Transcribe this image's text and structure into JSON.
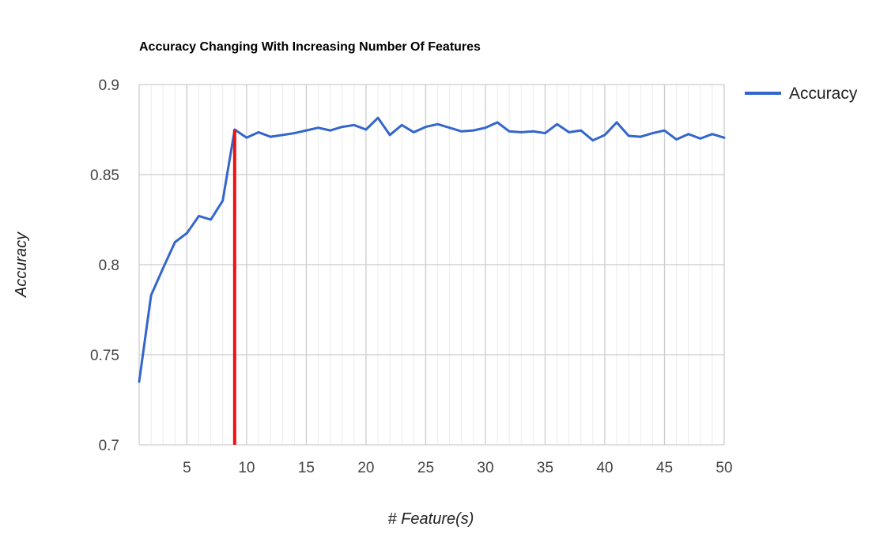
{
  "chart_data": {
    "type": "line",
    "title": "Accuracy Changing With Increasing Number Of Features",
    "xlabel": "# Feature(s)",
    "ylabel": "Accuracy",
    "xlim": [
      1,
      50
    ],
    "ylim": [
      0.7,
      0.9
    ],
    "x_ticks": [
      5,
      10,
      15,
      20,
      25,
      30,
      35,
      40,
      45,
      50
    ],
    "y_ticks": [
      0.7,
      0.75,
      0.8,
      0.85,
      0.9
    ],
    "y_tick_labels": [
      "0.7",
      "0.75",
      "0.8",
      "0.85",
      "0.9"
    ],
    "grid": true,
    "legend_position": "right",
    "series": [
      {
        "name": "Accuracy",
        "color": "#3366cc",
        "x": [
          1,
          2,
          3,
          4,
          5,
          6,
          7,
          8,
          9,
          10,
          11,
          12,
          13,
          14,
          15,
          16,
          17,
          18,
          19,
          20,
          21,
          22,
          23,
          24,
          25,
          26,
          27,
          28,
          29,
          30,
          31,
          32,
          33,
          34,
          35,
          36,
          37,
          38,
          39,
          40,
          41,
          42,
          43,
          44,
          45,
          46,
          47,
          48,
          49,
          50
        ],
        "y": [
          0.735,
          0.783,
          0.798,
          0.8125,
          0.8175,
          0.827,
          0.825,
          0.8355,
          0.875,
          0.8705,
          0.8735,
          0.871,
          0.872,
          0.873,
          0.8745,
          0.876,
          0.8745,
          0.8765,
          0.8775,
          0.875,
          0.8815,
          0.872,
          0.8775,
          0.8735,
          0.8765,
          0.878,
          0.876,
          0.874,
          0.8745,
          0.876,
          0.879,
          0.874,
          0.8735,
          0.874,
          0.873,
          0.878,
          0.8735,
          0.8745,
          0.869,
          0.872,
          0.879,
          0.8715,
          0.871,
          0.873,
          0.8745,
          0.8695,
          0.8725,
          0.87,
          0.8725,
          0.8705
        ]
      }
    ],
    "annotations": [
      {
        "type": "vertical-line",
        "x": 9,
        "y_from": 0.7,
        "y_to": 0.875,
        "color": "#ee1111"
      }
    ]
  }
}
